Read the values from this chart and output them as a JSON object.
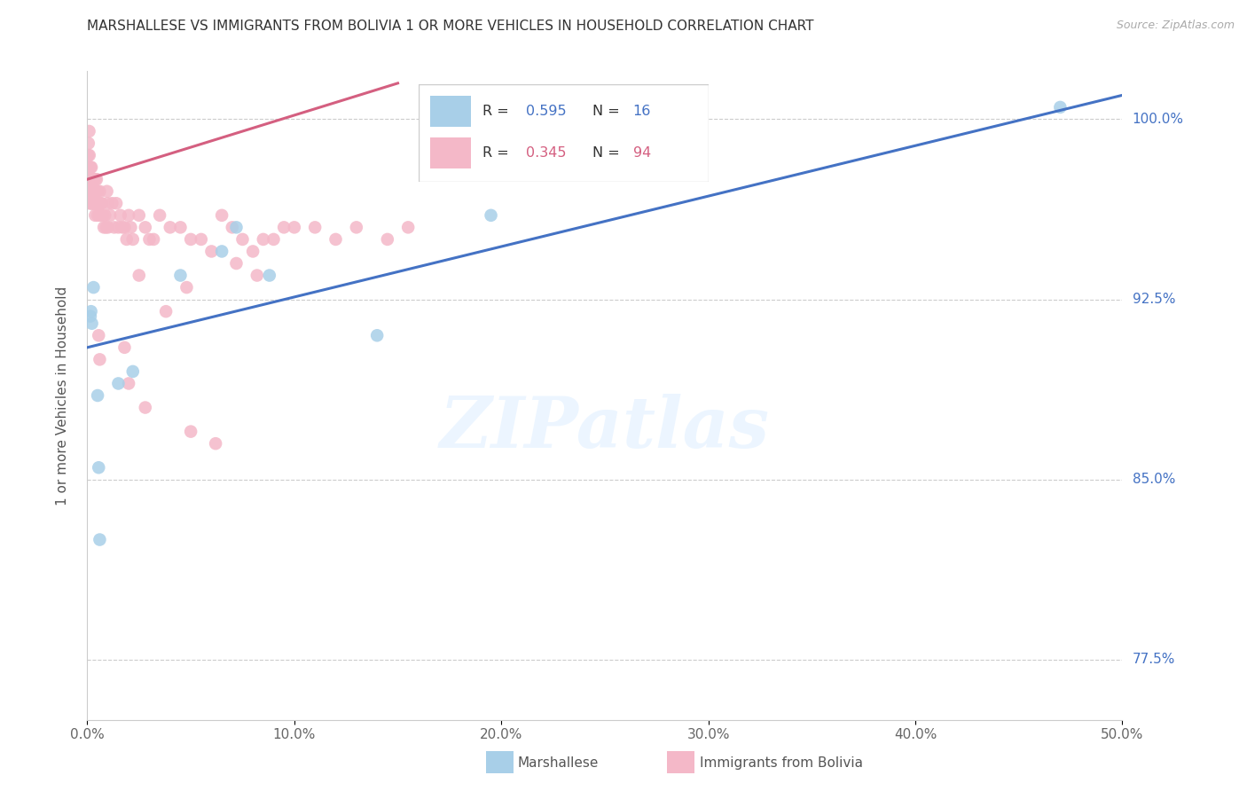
{
  "title": "MARSHALLESE VS IMMIGRANTS FROM BOLIVIA 1 OR MORE VEHICLES IN HOUSEHOLD CORRELATION CHART",
  "source": "Source: ZipAtlas.com",
  "ylabel": "1 or more Vehicles in Household",
  "xlim": [
    0.0,
    50.0
  ],
  "ylim": [
    75.0,
    102.0
  ],
  "xticks": [
    0.0,
    10.0,
    20.0,
    30.0,
    40.0,
    50.0
  ],
  "yticks": [
    77.5,
    85.0,
    92.5,
    100.0
  ],
  "blue_label": "Marshallese",
  "pink_label": "Immigrants from Bolivia",
  "blue_R": 0.595,
  "blue_N": 16,
  "pink_R": 0.345,
  "pink_N": 94,
  "blue_color": "#a8cfe8",
  "pink_color": "#f4b8c8",
  "blue_line_color": "#4472C4",
  "pink_line_color": "#d45f80",
  "blue_line_x0": 0.0,
  "blue_line_y0": 90.5,
  "blue_line_x1": 50.0,
  "blue_line_y1": 101.0,
  "pink_line_x0": 0.0,
  "pink_line_y0": 97.5,
  "pink_line_x1": 15.0,
  "pink_line_y1": 101.5,
  "blue_points_x": [
    0.15,
    0.18,
    0.22,
    0.3,
    0.5,
    0.55,
    0.6,
    1.5,
    2.2,
    4.5,
    6.5,
    7.2,
    8.8,
    14.0,
    19.5,
    47.0
  ],
  "blue_points_y": [
    91.8,
    92.0,
    91.5,
    93.0,
    88.5,
    85.5,
    82.5,
    89.0,
    89.5,
    93.5,
    94.5,
    95.5,
    93.5,
    91.0,
    96.0,
    100.5
  ],
  "pink_points_x": [
    0.05,
    0.06,
    0.07,
    0.08,
    0.09,
    0.1,
    0.1,
    0.11,
    0.12,
    0.13,
    0.14,
    0.15,
    0.16,
    0.17,
    0.18,
    0.2,
    0.2,
    0.22,
    0.22,
    0.25,
    0.25,
    0.28,
    0.3,
    0.3,
    0.32,
    0.35,
    0.35,
    0.38,
    0.4,
    0.4,
    0.42,
    0.45,
    0.45,
    0.5,
    0.5,
    0.55,
    0.6,
    0.6,
    0.65,
    0.7,
    0.75,
    0.8,
    0.85,
    0.9,
    0.95,
    1.0,
    1.0,
    1.1,
    1.2,
    1.3,
    1.4,
    1.5,
    1.6,
    1.7,
    1.8,
    1.9,
    2.0,
    2.1,
    2.2,
    2.5,
    2.8,
    3.0,
    3.5,
    4.5,
    5.0,
    6.5,
    7.0,
    8.5,
    9.5,
    11.0,
    12.0,
    13.0,
    14.5,
    15.5,
    3.2,
    4.0,
    5.5,
    6.0,
    7.5,
    8.0,
    9.0,
    10.0,
    0.55,
    0.6,
    1.8,
    2.5,
    3.8,
    4.8,
    7.2,
    8.2,
    2.0,
    2.8,
    5.0,
    6.2
  ],
  "pink_points_y": [
    98.5,
    99.0,
    98.0,
    97.5,
    99.5,
    97.5,
    98.5,
    96.5,
    98.0,
    97.0,
    97.5,
    97.0,
    98.0,
    97.5,
    96.5,
    97.0,
    98.0,
    97.0,
    96.5,
    97.5,
    96.5,
    97.0,
    96.5,
    97.5,
    96.5,
    97.0,
    96.5,
    96.0,
    97.5,
    96.5,
    97.0,
    96.5,
    97.5,
    97.0,
    96.0,
    96.5,
    97.0,
    96.0,
    96.5,
    96.5,
    96.0,
    95.5,
    96.0,
    95.5,
    97.0,
    96.5,
    95.5,
    96.0,
    96.5,
    95.5,
    96.5,
    95.5,
    96.0,
    95.5,
    95.5,
    95.0,
    96.0,
    95.5,
    95.0,
    96.0,
    95.5,
    95.0,
    96.0,
    95.5,
    95.0,
    96.0,
    95.5,
    95.0,
    95.5,
    95.5,
    95.0,
    95.5,
    95.0,
    95.5,
    95.0,
    95.5,
    95.0,
    94.5,
    95.0,
    94.5,
    95.0,
    95.5,
    91.0,
    90.0,
    90.5,
    93.5,
    92.0,
    93.0,
    94.0,
    93.5,
    89.0,
    88.0,
    87.0,
    86.5
  ]
}
